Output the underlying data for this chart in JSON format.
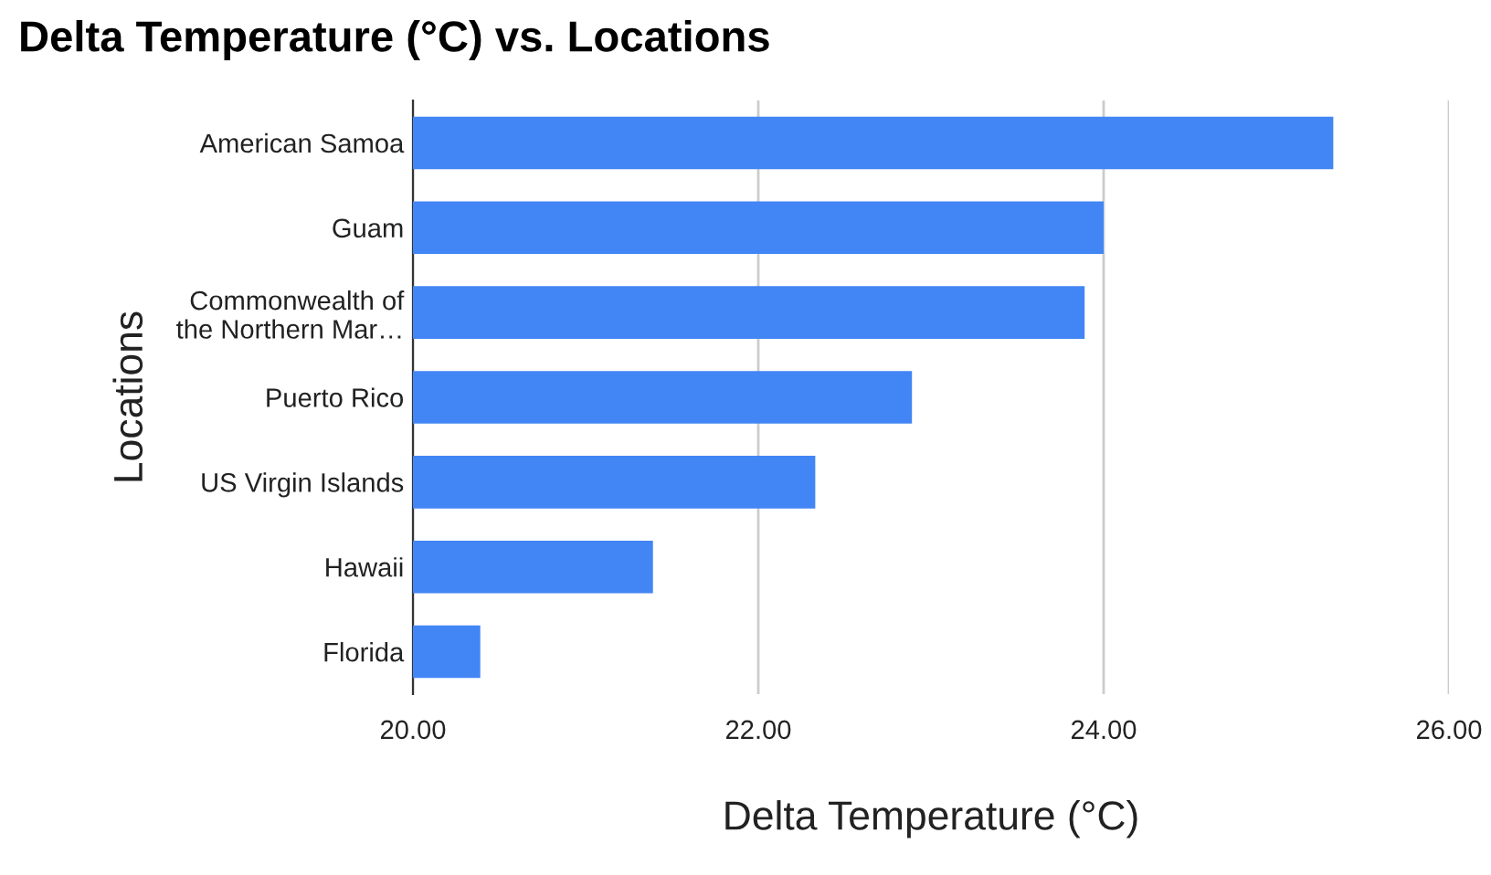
{
  "chart_data": {
    "type": "bar",
    "orientation": "horizontal",
    "title": "Delta Temperature (°C) vs. Locations",
    "xlabel": "Delta Temperature (°C)",
    "ylabel": "Locations",
    "categories": [
      "American Samoa",
      "Guam",
      "Commonwealth of\nthe Northern Mar…",
      "Puerto Rico",
      "US Virgin Islands",
      "Hawaii",
      "Florida"
    ],
    "values": [
      25.33,
      24.0,
      23.89,
      22.89,
      22.33,
      21.39,
      20.39
    ],
    "color": "#4285f4",
    "xlim": [
      20,
      26
    ],
    "xticks": [
      {
        "value": 20,
        "label": "20.00"
      },
      {
        "value": 22,
        "label": "22.00"
      },
      {
        "value": 24,
        "label": "24.00"
      },
      {
        "value": 26,
        "label": "26.00"
      }
    ],
    "grid": "x",
    "legend": false
  }
}
